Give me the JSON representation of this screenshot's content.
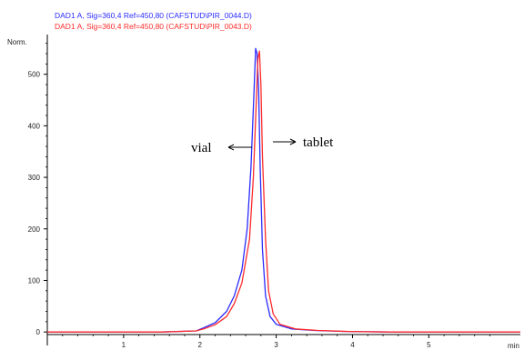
{
  "chart_data": {
    "type": "line",
    "legend": [
      {
        "name": "DAD1 A, Sig=360,4 Ref=450,80 (CAFSTUD\\PIR_0044.D)",
        "color": "#2b2bff"
      },
      {
        "name": "DAD1 A, Sig=360,4 Ref=450,80 (CAFSTUD\\PIR_0043.D)",
        "color": "#ff2b2b"
      }
    ],
    "ylabel": "Norm.",
    "xlabel": "min",
    "xlim": [
      0,
      6.2
    ],
    "ylim": [
      -5,
      570
    ],
    "x_ticks": [
      1,
      2,
      3,
      4,
      5
    ],
    "y_ticks": [
      0,
      100,
      200,
      300,
      400,
      500
    ],
    "series": [
      {
        "color": "#2b2bff",
        "x": [
          0.0,
          1.0,
          1.5,
          1.95,
          2.05,
          2.2,
          2.35,
          2.45,
          2.55,
          2.62,
          2.67,
          2.71,
          2.73,
          2.75,
          2.77,
          2.79,
          2.82,
          2.86,
          2.92,
          3.0,
          3.2,
          3.5,
          3.9,
          4.5,
          5.5,
          6.2
        ],
        "y": [
          0,
          0,
          0,
          2,
          8,
          18,
          40,
          70,
          120,
          200,
          320,
          470,
          550,
          540,
          470,
          320,
          160,
          70,
          30,
          15,
          6,
          3,
          1,
          0,
          0,
          0
        ]
      },
      {
        "color": "#ff2b2b",
        "x": [
          0.0,
          1.0,
          1.5,
          1.95,
          2.05,
          2.2,
          2.35,
          2.45,
          2.55,
          2.65,
          2.7,
          2.74,
          2.76,
          2.78,
          2.8,
          2.82,
          2.86,
          2.9,
          2.96,
          3.05,
          3.25,
          3.55,
          3.95,
          4.5,
          5.5,
          6.2
        ],
        "y": [
          0,
          0,
          0,
          2,
          6,
          14,
          30,
          55,
          95,
          180,
          300,
          450,
          530,
          545,
          480,
          340,
          180,
          80,
          35,
          15,
          6,
          3,
          1,
          0,
          0,
          0
        ]
      }
    ],
    "annotations": [
      {
        "text": "vial",
        "arrow": "left"
      },
      {
        "text": "tablet",
        "arrow": "right"
      }
    ]
  }
}
